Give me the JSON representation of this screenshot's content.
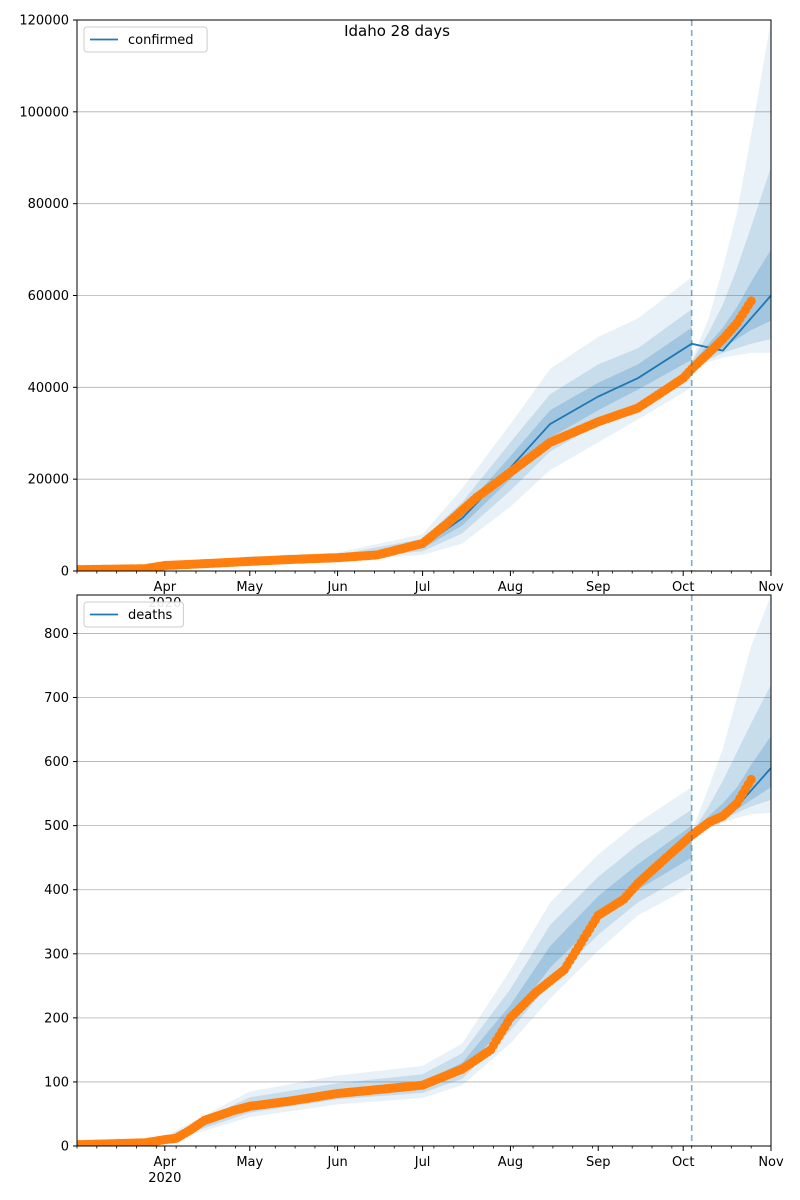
{
  "chart_data": [
    {
      "type": "line",
      "title": "Idaho 28 days",
      "legend": "top-left",
      "grid": "y",
      "xlim": [
        "2020-03-01",
        "2020-11-01"
      ],
      "ylim": [
        0,
        120000
      ],
      "yticks": [
        0,
        20000,
        40000,
        60000,
        80000,
        100000,
        120000
      ],
      "xticks": [
        {
          "date": "2020-04-01",
          "label": "Apr",
          "sub": "2020"
        },
        {
          "date": "2020-05-01",
          "label": "May"
        },
        {
          "date": "2020-06-01",
          "label": "Jun"
        },
        {
          "date": "2020-07-01",
          "label": "Jul"
        },
        {
          "date": "2020-08-01",
          "label": "Aug"
        },
        {
          "date": "2020-09-01",
          "label": "Sep"
        },
        {
          "date": "2020-10-01",
          "label": "Oct"
        },
        {
          "date": "2020-11-01",
          "label": "Nov"
        }
      ],
      "vline": "2020-10-04",
      "series": [
        {
          "name": "confirmed",
          "kind": "model",
          "color": "#1f77b4",
          "x": [
            "2020-03-01",
            "2020-04-01",
            "2020-05-01",
            "2020-06-01",
            "2020-07-01",
            "2020-07-15",
            "2020-08-01",
            "2020-08-15",
            "2020-09-01",
            "2020-09-15",
            "2020-10-04",
            "2020-10-15",
            "2020-11-01"
          ],
          "y": [
            0,
            800,
            2200,
            2900,
            5500,
            11500,
            22500,
            32000,
            38000,
            42000,
            49500,
            48000,
            60000
          ]
        },
        {
          "kind": "observed",
          "color": "#ff7f0e",
          "x": [
            "2020-03-01",
            "2020-03-25",
            "2020-04-01",
            "2020-04-15",
            "2020-05-01",
            "2020-05-15",
            "2020-06-01",
            "2020-06-15",
            "2020-07-01",
            "2020-07-10",
            "2020-07-20",
            "2020-08-01",
            "2020-08-15",
            "2020-09-01",
            "2020-09-15",
            "2020-10-01",
            "2020-10-04",
            "2020-10-10",
            "2020-10-15",
            "2020-10-20",
            "2020-10-25"
          ],
          "y": [
            300,
            500,
            1200,
            1600,
            2100,
            2500,
            2900,
            3500,
            6000,
            10500,
            16000,
            21500,
            28000,
            32500,
            35500,
            42000,
            44000,
            47500,
            50500,
            54000,
            58800
          ]
        }
      ],
      "bands": [
        {
          "x": [
            "2020-03-01",
            "2020-04-01",
            "2020-05-01",
            "2020-06-01",
            "2020-07-01",
            "2020-07-15",
            "2020-08-01",
            "2020-08-15",
            "2020-09-01",
            "2020-09-15",
            "2020-10-04"
          ],
          "lower": [
            0,
            400,
            1600,
            2200,
            3500,
            6000,
            14000,
            22000,
            28000,
            33000,
            40000
          ],
          "upper": [
            0,
            1200,
            3200,
            4000,
            8000,
            18000,
            32000,
            44000,
            51000,
            55000,
            64000
          ]
        },
        {
          "x": [
            "2020-03-01",
            "2020-04-01",
            "2020-05-01",
            "2020-06-01",
            "2020-07-01",
            "2020-07-15",
            "2020-08-01",
            "2020-08-15",
            "2020-09-01",
            "2020-09-15",
            "2020-10-04"
          ],
          "lower": [
            0,
            550,
            1800,
            2450,
            4300,
            8200,
            17500,
            26000,
            32000,
            36500,
            43000
          ],
          "upper": [
            0,
            1050,
            2800,
            3550,
            7000,
            15000,
            28000,
            38500,
            45000,
            48500,
            57000
          ]
        },
        {
          "x": [
            "2020-03-01",
            "2020-04-01",
            "2020-05-01",
            "2020-06-01",
            "2020-07-01",
            "2020-07-15",
            "2020-08-01",
            "2020-08-15",
            "2020-09-01",
            "2020-09-15",
            "2020-10-04"
          ],
          "lower": [
            0,
            680,
            2000,
            2700,
            4900,
            9900,
            20000,
            29000,
            35000,
            39500,
            46000
          ],
          "upper": [
            0,
            920,
            2450,
            3150,
            6100,
            13200,
            25000,
            35000,
            41000,
            45000,
            53000
          ]
        },
        {
          "x": [
            "2020-10-04",
            "2020-10-10",
            "2020-10-15",
            "2020-10-20",
            "2020-10-25",
            "2020-11-01"
          ],
          "lower": [
            44000,
            45500,
            46500,
            47000,
            47500,
            47500
          ],
          "upper": [
            46000,
            55000,
            66000,
            78000,
            95000,
            120000
          ]
        },
        {
          "x": [
            "2020-10-04",
            "2020-10-10",
            "2020-10-15",
            "2020-10-20",
            "2020-10-25",
            "2020-11-01"
          ],
          "lower": [
            44500,
            46000,
            47500,
            48500,
            49500,
            50500
          ],
          "upper": [
            45500,
            52000,
            58000,
            66000,
            75000,
            88000
          ]
        },
        {
          "x": [
            "2020-10-04",
            "2020-10-10",
            "2020-10-15",
            "2020-10-20",
            "2020-10-25",
            "2020-11-01"
          ],
          "lower": [
            44800,
            46500,
            48500,
            50500,
            52500,
            54500
          ],
          "upper": [
            45200,
            49500,
            53000,
            57500,
            63000,
            70000
          ]
        }
      ]
    },
    {
      "type": "line",
      "legend": "top-left",
      "grid": "y",
      "xlim": [
        "2020-03-01",
        "2020-11-01"
      ],
      "ylim": [
        0,
        860
      ],
      "yticks": [
        0,
        100,
        200,
        300,
        400,
        500,
        600,
        700,
        800
      ],
      "xticks": [
        {
          "date": "2020-04-01",
          "label": "Apr",
          "sub": "2020"
        },
        {
          "date": "2020-05-01",
          "label": "May"
        },
        {
          "date": "2020-06-01",
          "label": "Jun"
        },
        {
          "date": "2020-07-01",
          "label": "Jul"
        },
        {
          "date": "2020-08-01",
          "label": "Aug"
        },
        {
          "date": "2020-09-01",
          "label": "Sep"
        },
        {
          "date": "2020-10-01",
          "label": "Oct"
        },
        {
          "date": "2020-11-01",
          "label": "Nov"
        }
      ],
      "vline": "2020-10-04",
      "series": [
        {
          "name": "deaths",
          "kind": "model",
          "color": "#1f77b4",
          "x": [
            "2020-10-04",
            "2020-10-10",
            "2020-10-15",
            "2020-10-20",
            "2020-10-25",
            "2020-11-01"
          ],
          "y": [
            485,
            505,
            515,
            530,
            555,
            590
          ]
        },
        {
          "kind": "observed",
          "color": "#ff7f0e",
          "x": [
            "2020-03-01",
            "2020-03-25",
            "2020-04-01",
            "2020-04-05",
            "2020-04-10",
            "2020-04-15",
            "2020-04-25",
            "2020-05-01",
            "2020-05-15",
            "2020-06-01",
            "2020-06-15",
            "2020-07-01",
            "2020-07-15",
            "2020-07-25",
            "2020-08-01",
            "2020-08-10",
            "2020-08-20",
            "2020-09-01",
            "2020-09-10",
            "2020-09-15",
            "2020-09-25",
            "2020-10-04",
            "2020-10-10",
            "2020-10-15",
            "2020-10-20",
            "2020-10-25"
          ],
          "y": [
            2,
            5,
            10,
            12,
            25,
            40,
            55,
            62,
            70,
            82,
            88,
            95,
            120,
            150,
            200,
            240,
            275,
            360,
            385,
            410,
            450,
            485,
            505,
            515,
            535,
            572
          ]
        }
      ],
      "bands": [
        {
          "x": [
            "2020-03-01",
            "2020-04-01",
            "2020-05-01",
            "2020-06-01",
            "2020-07-01",
            "2020-07-15",
            "2020-08-01",
            "2020-08-15",
            "2020-09-01",
            "2020-09-15",
            "2020-10-04"
          ],
          "lower": [
            0,
            5,
            45,
            65,
            75,
            95,
            160,
            230,
            305,
            360,
            405
          ],
          "upper": [
            0,
            15,
            85,
            110,
            125,
            160,
            275,
            380,
            455,
            505,
            560
          ]
        },
        {
          "x": [
            "2020-03-01",
            "2020-04-01",
            "2020-05-01",
            "2020-06-01",
            "2020-07-01",
            "2020-07-15",
            "2020-08-01",
            "2020-08-15",
            "2020-09-01",
            "2020-09-15",
            "2020-10-04"
          ],
          "lower": [
            0,
            7,
            52,
            73,
            83,
            105,
            180,
            255,
            330,
            380,
            428
          ],
          "upper": [
            0,
            13,
            76,
            98,
            112,
            145,
            245,
            345,
            420,
            470,
            525
          ]
        },
        {
          "x": [
            "2020-03-01",
            "2020-04-01",
            "2020-05-01",
            "2020-06-01",
            "2020-07-01",
            "2020-07-15",
            "2020-08-01",
            "2020-08-15",
            "2020-09-01",
            "2020-09-15",
            "2020-10-04"
          ],
          "lower": [
            0,
            8,
            58,
            80,
            90,
            114,
            198,
            278,
            352,
            400,
            450
          ],
          "upper": [
            0,
            12,
            68,
            88,
            100,
            130,
            220,
            312,
            390,
            440,
            500
          ]
        },
        {
          "x": [
            "2020-10-04",
            "2020-10-10",
            "2020-10-15",
            "2020-10-20",
            "2020-10-25",
            "2020-11-01"
          ],
          "lower": [
            482,
            495,
            505,
            512,
            518,
            520
          ],
          "upper": [
            490,
            560,
            620,
            700,
            780,
            860
          ]
        },
        {
          "x": [
            "2020-10-04",
            "2020-10-10",
            "2020-10-15",
            "2020-10-20",
            "2020-10-25",
            "2020-11-01"
          ],
          "lower": [
            484,
            500,
            510,
            520,
            530,
            540
          ],
          "upper": [
            488,
            530,
            570,
            615,
            660,
            720
          ]
        },
        {
          "x": [
            "2020-10-04",
            "2020-10-10",
            "2020-10-15",
            "2020-10-20",
            "2020-10-25",
            "2020-11-01"
          ],
          "lower": [
            485,
            502,
            513,
            525,
            540,
            560
          ],
          "upper": [
            487,
            515,
            535,
            560,
            595,
            640
          ]
        }
      ]
    }
  ]
}
